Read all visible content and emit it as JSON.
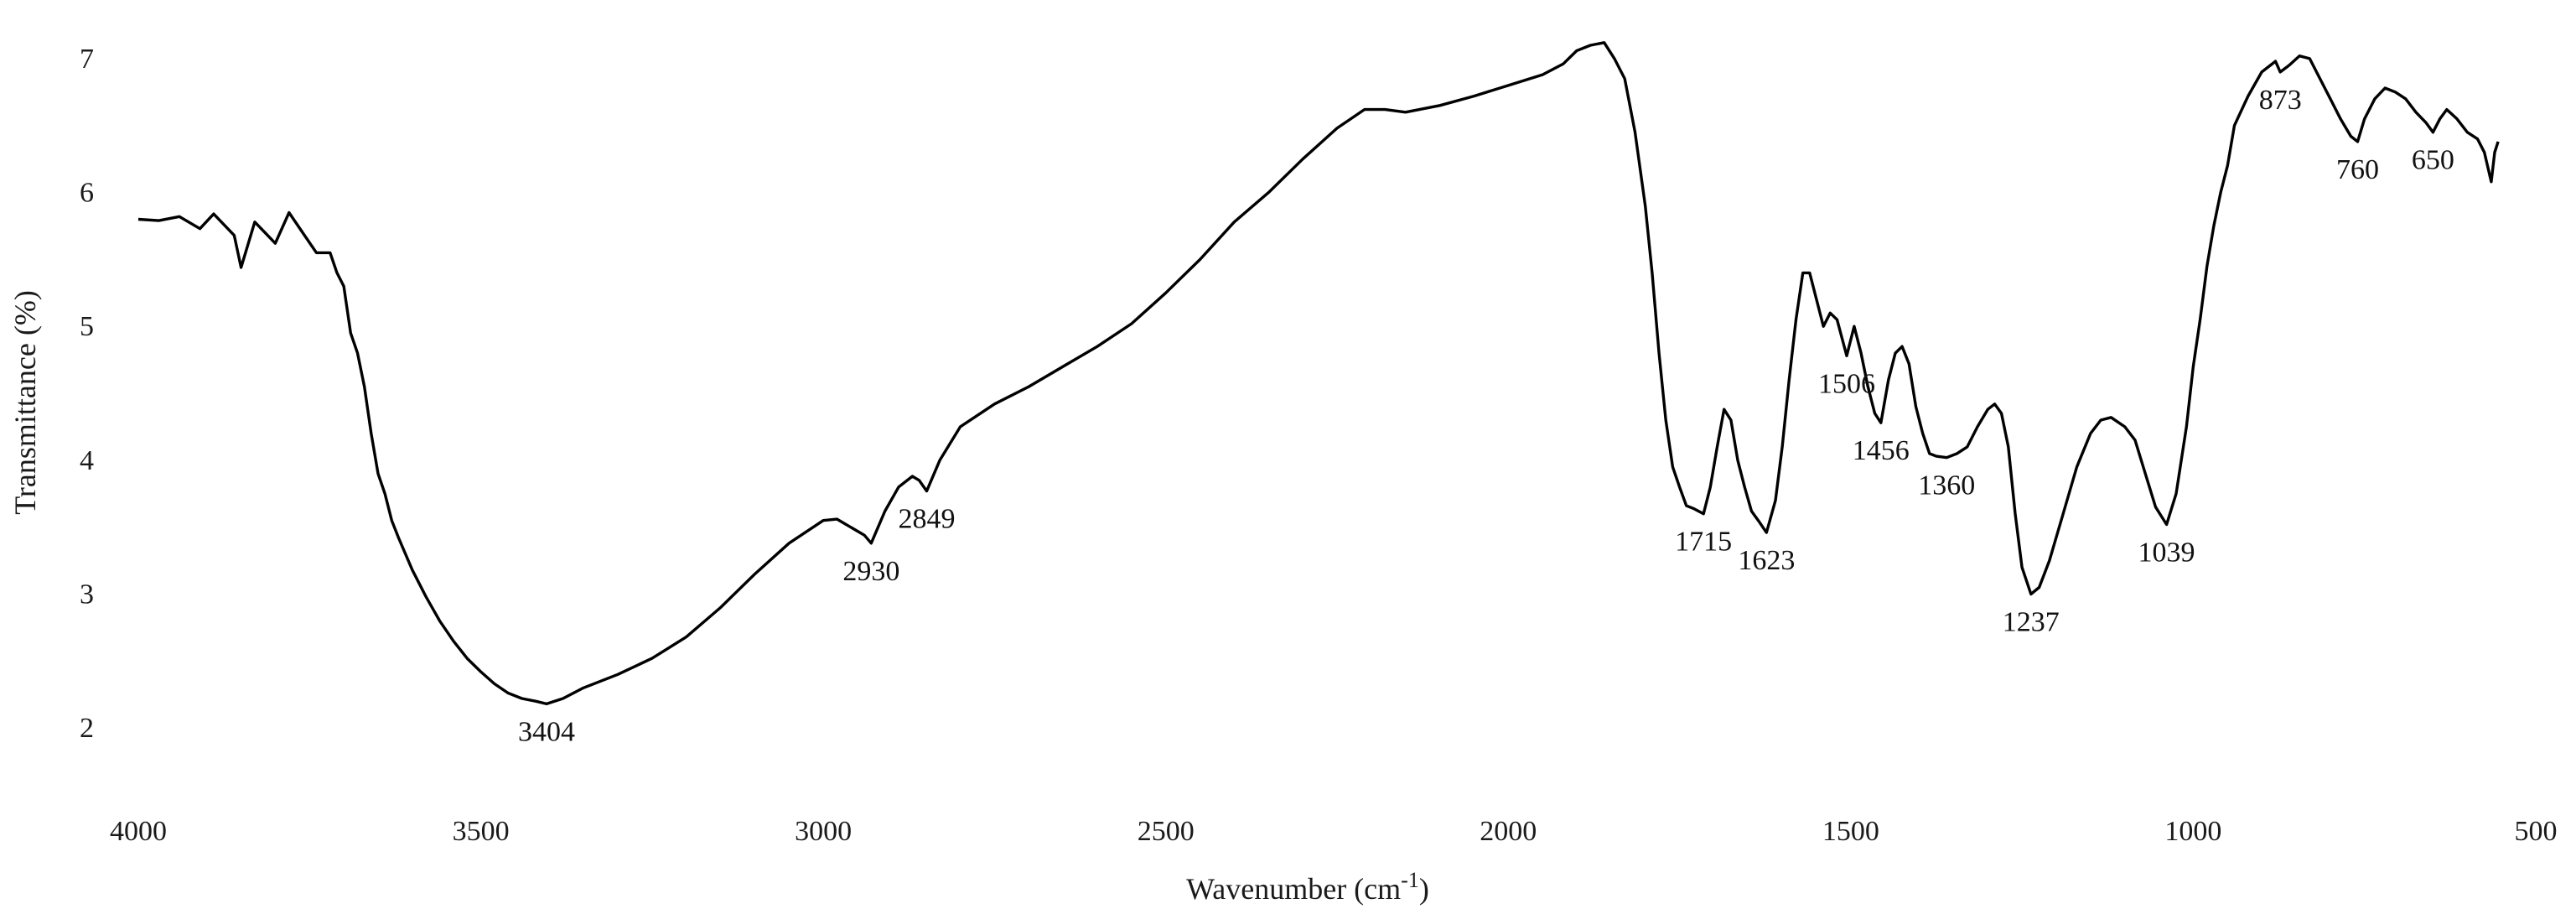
{
  "chart_data": {
    "type": "line",
    "xlabel": "Wavenumber (cm",
    "xlabel_sup": "-1",
    "xlabel_close": ")",
    "ylabel": "Transmittance (%)",
    "xlim": [
      4000,
      500
    ],
    "x_reversed": true,
    "ylim": [
      1.6,
      7.2
    ],
    "x_ticks": [
      4000,
      3500,
      3000,
      2500,
      2000,
      1500,
      1000,
      500
    ],
    "y_ticks": [
      2,
      3,
      4,
      5,
      6,
      7
    ],
    "grid": false,
    "legend": "none",
    "line_color": "#000000",
    "series": [
      {
        "points": [
          [
            4000,
            5.8
          ],
          [
            3970,
            5.79
          ],
          [
            3940,
            5.82
          ],
          [
            3910,
            5.73
          ],
          [
            3890,
            5.84
          ],
          [
            3860,
            5.68
          ],
          [
            3850,
            5.44
          ],
          [
            3830,
            5.78
          ],
          [
            3800,
            5.62
          ],
          [
            3780,
            5.85
          ],
          [
            3760,
            5.7
          ],
          [
            3740,
            5.55
          ],
          [
            3720,
            5.55
          ],
          [
            3710,
            5.4
          ],
          [
            3700,
            5.3
          ],
          [
            3690,
            4.95
          ],
          [
            3680,
            4.8
          ],
          [
            3670,
            4.55
          ],
          [
            3660,
            4.2
          ],
          [
            3650,
            3.9
          ],
          [
            3640,
            3.75
          ],
          [
            3630,
            3.55
          ],
          [
            3620,
            3.42
          ],
          [
            3600,
            3.18
          ],
          [
            3580,
            2.98
          ],
          [
            3560,
            2.8
          ],
          [
            3540,
            2.65
          ],
          [
            3520,
            2.52
          ],
          [
            3500,
            2.42
          ],
          [
            3480,
            2.33
          ],
          [
            3460,
            2.26
          ],
          [
            3440,
            2.22
          ],
          [
            3420,
            2.2
          ],
          [
            3404,
            2.18
          ],
          [
            3380,
            2.22
          ],
          [
            3350,
            2.3
          ],
          [
            3300,
            2.4
          ],
          [
            3250,
            2.52
          ],
          [
            3200,
            2.68
          ],
          [
            3150,
            2.9
          ],
          [
            3100,
            3.15
          ],
          [
            3050,
            3.38
          ],
          [
            3000,
            3.55
          ],
          [
            2980,
            3.56
          ],
          [
            2960,
            3.5
          ],
          [
            2940,
            3.44
          ],
          [
            2930,
            3.38
          ],
          [
            2910,
            3.62
          ],
          [
            2890,
            3.8
          ],
          [
            2870,
            3.88
          ],
          [
            2860,
            3.85
          ],
          [
            2849,
            3.77
          ],
          [
            2830,
            4.0
          ],
          [
            2800,
            4.25
          ],
          [
            2750,
            4.42
          ],
          [
            2700,
            4.55
          ],
          [
            2650,
            4.7
          ],
          [
            2600,
            4.85
          ],
          [
            2550,
            5.02
          ],
          [
            2500,
            5.25
          ],
          [
            2450,
            5.5
          ],
          [
            2400,
            5.78
          ],
          [
            2350,
            6.0
          ],
          [
            2300,
            6.25
          ],
          [
            2250,
            6.48
          ],
          [
            2210,
            6.62
          ],
          [
            2180,
            6.62
          ],
          [
            2150,
            6.6
          ],
          [
            2100,
            6.65
          ],
          [
            2050,
            6.72
          ],
          [
            2000,
            6.8
          ],
          [
            1950,
            6.88
          ],
          [
            1920,
            6.96
          ],
          [
            1900,
            7.06
          ],
          [
            1880,
            7.1
          ],
          [
            1860,
            7.12
          ],
          [
            1845,
            7.0
          ],
          [
            1830,
            6.85
          ],
          [
            1815,
            6.45
          ],
          [
            1800,
            5.9
          ],
          [
            1790,
            5.4
          ],
          [
            1780,
            4.8
          ],
          [
            1770,
            4.3
          ],
          [
            1760,
            3.95
          ],
          [
            1750,
            3.8
          ],
          [
            1740,
            3.66
          ],
          [
            1730,
            3.64
          ],
          [
            1715,
            3.6
          ],
          [
            1705,
            3.8
          ],
          [
            1695,
            4.1
          ],
          [
            1685,
            4.38
          ],
          [
            1675,
            4.3
          ],
          [
            1665,
            4.0
          ],
          [
            1655,
            3.8
          ],
          [
            1645,
            3.62
          ],
          [
            1635,
            3.55
          ],
          [
            1623,
            3.46
          ],
          [
            1610,
            3.7
          ],
          [
            1600,
            4.1
          ],
          [
            1590,
            4.6
          ],
          [
            1580,
            5.05
          ],
          [
            1570,
            5.4
          ],
          [
            1560,
            5.4
          ],
          [
            1550,
            5.2
          ],
          [
            1540,
            5.0
          ],
          [
            1530,
            5.1
          ],
          [
            1520,
            5.05
          ],
          [
            1506,
            4.78
          ],
          [
            1495,
            5.0
          ],
          [
            1485,
            4.8
          ],
          [
            1475,
            4.55
          ],
          [
            1465,
            4.35
          ],
          [
            1456,
            4.28
          ],
          [
            1445,
            4.6
          ],
          [
            1435,
            4.8
          ],
          [
            1425,
            4.85
          ],
          [
            1415,
            4.72
          ],
          [
            1405,
            4.4
          ],
          [
            1395,
            4.2
          ],
          [
            1385,
            4.05
          ],
          [
            1375,
            4.03
          ],
          [
            1360,
            4.02
          ],
          [
            1345,
            4.05
          ],
          [
            1330,
            4.1
          ],
          [
            1315,
            4.25
          ],
          [
            1300,
            4.38
          ],
          [
            1290,
            4.42
          ],
          [
            1280,
            4.35
          ],
          [
            1270,
            4.1
          ],
          [
            1260,
            3.6
          ],
          [
            1250,
            3.2
          ],
          [
            1237,
            3.0
          ],
          [
            1225,
            3.05
          ],
          [
            1210,
            3.25
          ],
          [
            1190,
            3.6
          ],
          [
            1170,
            3.95
          ],
          [
            1150,
            4.2
          ],
          [
            1135,
            4.3
          ],
          [
            1120,
            4.32
          ],
          [
            1100,
            4.25
          ],
          [
            1085,
            4.15
          ],
          [
            1070,
            3.9
          ],
          [
            1055,
            3.65
          ],
          [
            1039,
            3.52
          ],
          [
            1025,
            3.75
          ],
          [
            1010,
            4.25
          ],
          [
            1000,
            4.7
          ],
          [
            990,
            5.05
          ],
          [
            980,
            5.45
          ],
          [
            970,
            5.75
          ],
          [
            960,
            6.0
          ],
          [
            950,
            6.2
          ],
          [
            940,
            6.5
          ],
          [
            920,
            6.72
          ],
          [
            900,
            6.9
          ],
          [
            880,
            6.98
          ],
          [
            873,
            6.9
          ],
          [
            860,
            6.95
          ],
          [
            845,
            7.02
          ],
          [
            830,
            7.0
          ],
          [
            815,
            6.85
          ],
          [
            800,
            6.7
          ],
          [
            785,
            6.55
          ],
          [
            770,
            6.42
          ],
          [
            760,
            6.38
          ],
          [
            750,
            6.55
          ],
          [
            735,
            6.7
          ],
          [
            720,
            6.78
          ],
          [
            705,
            6.75
          ],
          [
            690,
            6.7
          ],
          [
            675,
            6.6
          ],
          [
            660,
            6.52
          ],
          [
            650,
            6.45
          ],
          [
            640,
            6.55
          ],
          [
            630,
            6.62
          ],
          [
            615,
            6.55
          ],
          [
            600,
            6.45
          ],
          [
            585,
            6.4
          ],
          [
            575,
            6.3
          ],
          [
            565,
            6.08
          ],
          [
            560,
            6.3
          ],
          [
            555,
            6.38
          ]
        ]
      }
    ],
    "annotations": [
      {
        "text": "3404",
        "x": 3404,
        "y": 2.18
      },
      {
        "text": "2930",
        "x": 2930,
        "y": 3.38
      },
      {
        "text": "2849",
        "x": 2849,
        "y": 3.77
      },
      {
        "text": "1715",
        "x": 1715,
        "y": 3.6
      },
      {
        "text": "1623",
        "x": 1623,
        "y": 3.46
      },
      {
        "text": "1506",
        "x": 1506,
        "y": 4.78
      },
      {
        "text": "1456",
        "x": 1456,
        "y": 4.28
      },
      {
        "text": "1360",
        "x": 1360,
        "y": 4.02
      },
      {
        "text": "1237",
        "x": 1237,
        "y": 3.0
      },
      {
        "text": "1039",
        "x": 1039,
        "y": 3.52
      },
      {
        "text": "873",
        "x": 873,
        "y": 6.9
      },
      {
        "text": "760",
        "x": 760,
        "y": 6.38
      },
      {
        "text": "650",
        "x": 650,
        "y": 6.45
      }
    ]
  }
}
